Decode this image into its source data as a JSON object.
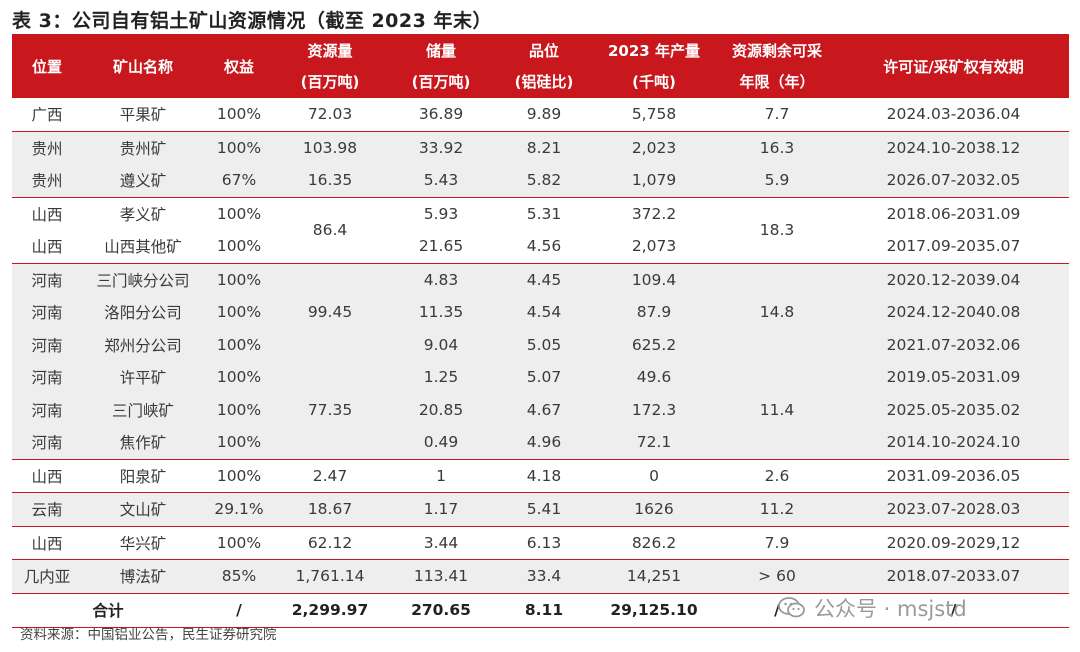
{
  "title": "表 3：公司自有铝土矿山资源情况（截至 2023 年末）",
  "header": {
    "location": "位置",
    "mine_name": "矿山名称",
    "equity": "权益",
    "resources_l1": "资源量",
    "resources_l2": "(百万吨)",
    "reserves_l1": "储量",
    "reserves_l2": "(百万吨)",
    "grade_l1": "品位",
    "grade_l2": "(铝硅比)",
    "output_l1": "2023 年产量",
    "output_l2": "(千吨)",
    "years_l1": "资源剩余可采",
    "years_l2": "年限（年）",
    "license": "许可证/采矿权有效期"
  },
  "rows": [
    {
      "loc": "广西",
      "name": "平果矿",
      "equity": "100%",
      "res": "72.03",
      "rsv": "36.89",
      "grade": "9.89",
      "output": "5,758",
      "years": "7.7",
      "license": "2024.03-2036.04"
    },
    {
      "loc": "贵州",
      "name": "贵州矿",
      "equity": "100%",
      "res": "103.98",
      "rsv": "33.92",
      "grade": "8.21",
      "output": "2,023",
      "years": "16.3",
      "license": "2024.10-2038.12"
    },
    {
      "loc": "贵州",
      "name": "遵义矿",
      "equity": "67%",
      "res": "16.35",
      "rsv": "5.43",
      "grade": "5.82",
      "output": "1,079",
      "years": "5.9",
      "license": "2026.07-2032.05"
    },
    {
      "loc": "山西",
      "name": "孝义矿",
      "equity": "100%",
      "res": "86.4",
      "rsv": "5.93",
      "grade": "5.31",
      "output": "372.2",
      "years": "18.3",
      "license": "2018.06-2031.09"
    },
    {
      "loc": "山西",
      "name": "山西其他矿",
      "equity": "100%",
      "rsv": "21.65",
      "grade": "4.56",
      "output": "2,073",
      "license": "2017.09-2035.07"
    },
    {
      "loc": "河南",
      "name": "三门峡分公司",
      "equity": "100%",
      "res": "99.45",
      "rsv": "4.83",
      "grade": "4.45",
      "output": "109.4",
      "years": "14.8",
      "license": "2020.12-2039.04"
    },
    {
      "loc": "河南",
      "name": "洛阳分公司",
      "equity": "100%",
      "rsv": "11.35",
      "grade": "4.54",
      "output": "87.9",
      "license": "2024.12-2040.08"
    },
    {
      "loc": "河南",
      "name": "郑州分公司",
      "equity": "100%",
      "rsv": "9.04",
      "grade": "5.05",
      "output": "625.2",
      "license": "2021.07-2032.06"
    },
    {
      "loc": "河南",
      "name": "许平矿",
      "equity": "100%",
      "res": "77.35",
      "rsv": "1.25",
      "grade": "5.07",
      "output": "49.6",
      "years": "11.4",
      "license": "2019.05-2031.09"
    },
    {
      "loc": "河南",
      "name": "三门峡矿",
      "equity": "100%",
      "rsv": "20.85",
      "grade": "4.67",
      "output": "172.3",
      "license": "2025.05-2035.02"
    },
    {
      "loc": "河南",
      "name": "焦作矿",
      "equity": "100%",
      "rsv": "0.49",
      "grade": "4.96",
      "output": "72.1",
      "license": "2014.10-2024.10"
    },
    {
      "loc": "山西",
      "name": "阳泉矿",
      "equity": "100%",
      "res": "2.47",
      "rsv": "1",
      "grade": "4.18",
      "output": "0",
      "years": "2.6",
      "license": "2031.09-2036.05"
    },
    {
      "loc": "云南",
      "name": "文山矿",
      "equity": "29.1%",
      "res": "18.67",
      "rsv": "1.17",
      "grade": "5.41",
      "output": "1626",
      "years": "11.2",
      "license": "2023.07-2028.03"
    },
    {
      "loc": "山西",
      "name": "华兴矿",
      "equity": "100%",
      "res": "62.12",
      "rsv": "3.44",
      "grade": "6.13",
      "output": "826.2",
      "years": "7.9",
      "license": "2020.09-2029,12"
    },
    {
      "loc": "几内亚",
      "name": "博法矿",
      "equity": "85%",
      "res": "1,761.14",
      "rsv": "113.41",
      "grade": "33.4",
      "output": "14,251",
      "years": "> 60",
      "license": "2018.07-2033.07"
    }
  ],
  "total": {
    "label": "合计",
    "equity": "/",
    "res": "2,299.97",
    "rsv": "270.65",
    "grade": "8.11",
    "output": "29,125.10",
    "years": "/",
    "license": "/"
  },
  "source": "资料来源：中国铝业公告，民生证券研究院",
  "watermark": "公众号 · msjstd"
}
